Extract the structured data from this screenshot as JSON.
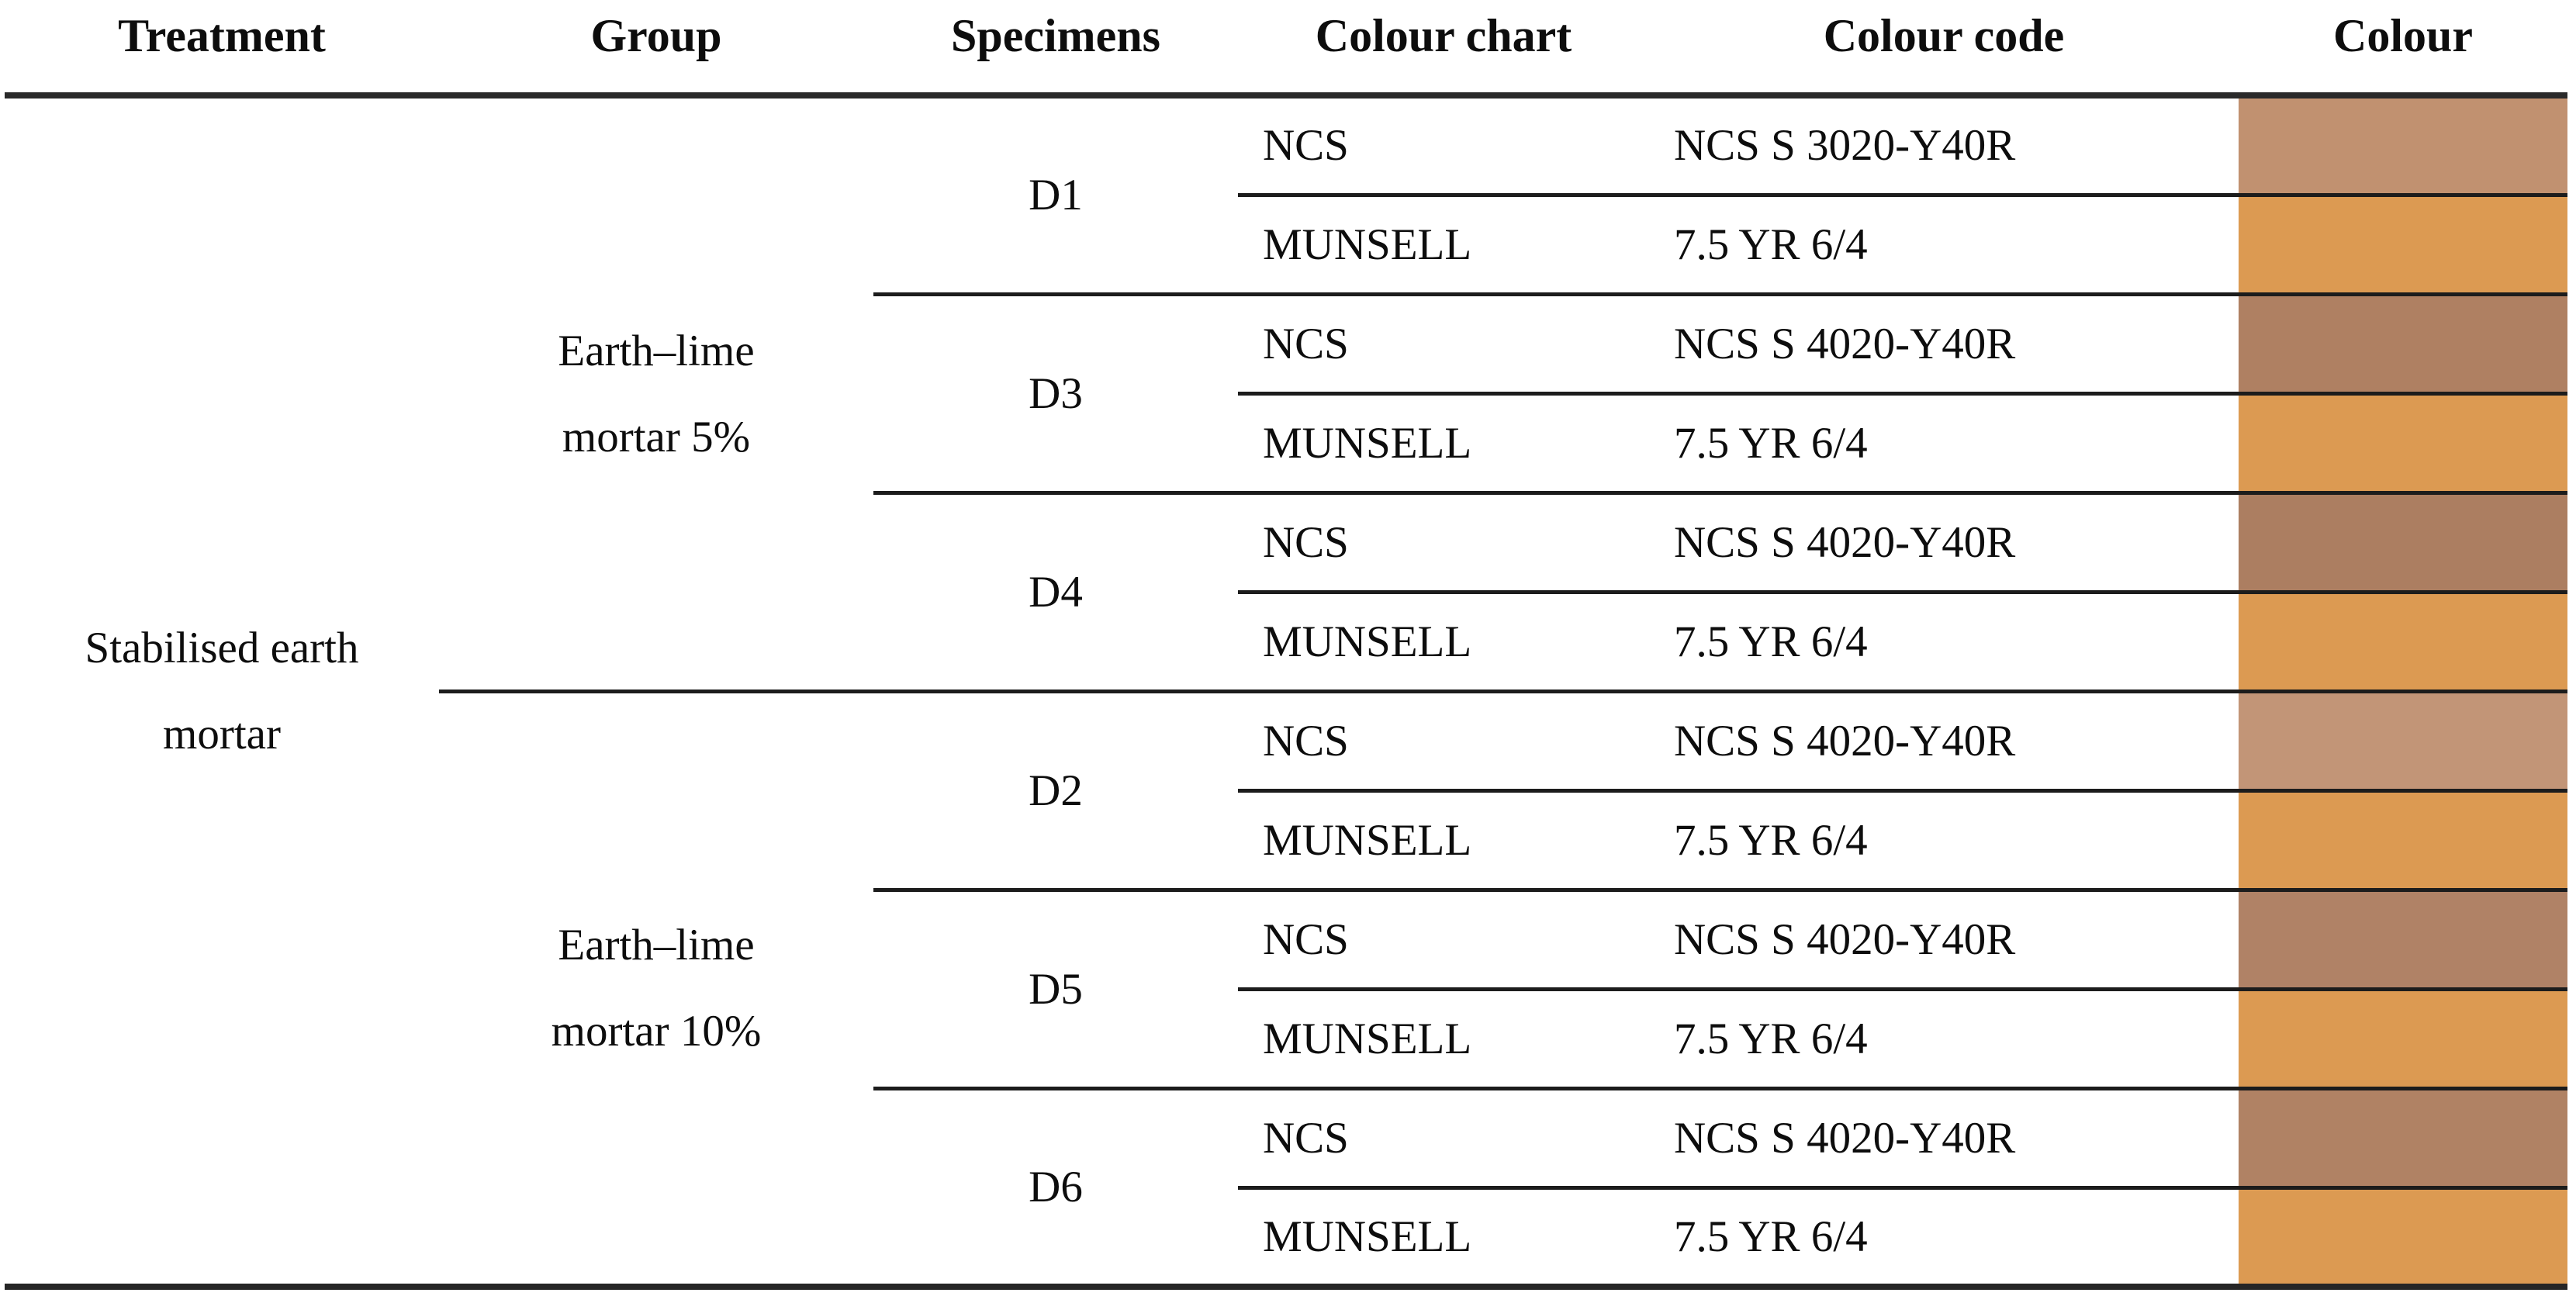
{
  "table": {
    "headers": {
      "treatment": "Treatment",
      "group": "Group",
      "specimens": "Specimens",
      "colour_chart": "Colour chart",
      "colour_code": "Colour code",
      "colour": "Colour"
    },
    "treatment": {
      "line1": "Stabilised earth",
      "line2": "mortar"
    },
    "groups": [
      {
        "line1": "Earth–lime",
        "line2": "mortar 5%"
      },
      {
        "line1": "Earth–lime",
        "line2": "mortar 10%"
      }
    ],
    "rows": [
      {
        "specimen": "D1",
        "chart": "NCS",
        "code": "NCS S 3020-Y40R",
        "swatch": "#c19170"
      },
      {
        "specimen": "D1",
        "chart": "MUNSELL",
        "code": "7.5 YR 6/4",
        "swatch": "#dc9a52"
      },
      {
        "specimen": "D3",
        "chart": "NCS",
        "code": "NCS S 4020-Y40R",
        "swatch": "#af8062"
      },
      {
        "specimen": "D3",
        "chart": "MUNSELL",
        "code": "7.5 YR 6/4",
        "swatch": "#dc9a52"
      },
      {
        "specimen": "D4",
        "chart": "NCS",
        "code": "NCS S 4020-Y40R",
        "swatch": "#ac7e61"
      },
      {
        "specimen": "D4",
        "chart": "MUNSELL",
        "code": "7.5 YR 6/4",
        "swatch": "#dc9a52"
      },
      {
        "specimen": "D2",
        "chart": "NCS",
        "code": "NCS S 4020-Y40R",
        "swatch": "#c29577"
      },
      {
        "specimen": "D2",
        "chart": "MUNSELL",
        "code": "7.5 YR 6/4",
        "swatch": "#dc9a52"
      },
      {
        "specimen": "D5",
        "chart": "NCS",
        "code": "NCS S 4020-Y40R",
        "swatch": "#b08266"
      },
      {
        "specimen": "D5",
        "chart": "MUNSELL",
        "code": "7.5 YR 6/4",
        "swatch": "#dc9a52"
      },
      {
        "specimen": "D6",
        "chart": "NCS",
        "code": "NCS S 4020-Y40R",
        "swatch": "#b08264"
      },
      {
        "specimen": "D6",
        "chart": "MUNSELL",
        "code": "7.5 YR 6/4",
        "swatch": "#dc9a52"
      }
    ],
    "colors": {
      "divider": "#1c1c1c",
      "heavy_rule": "#262626",
      "munsell_orange": "#dc9a52"
    }
  }
}
